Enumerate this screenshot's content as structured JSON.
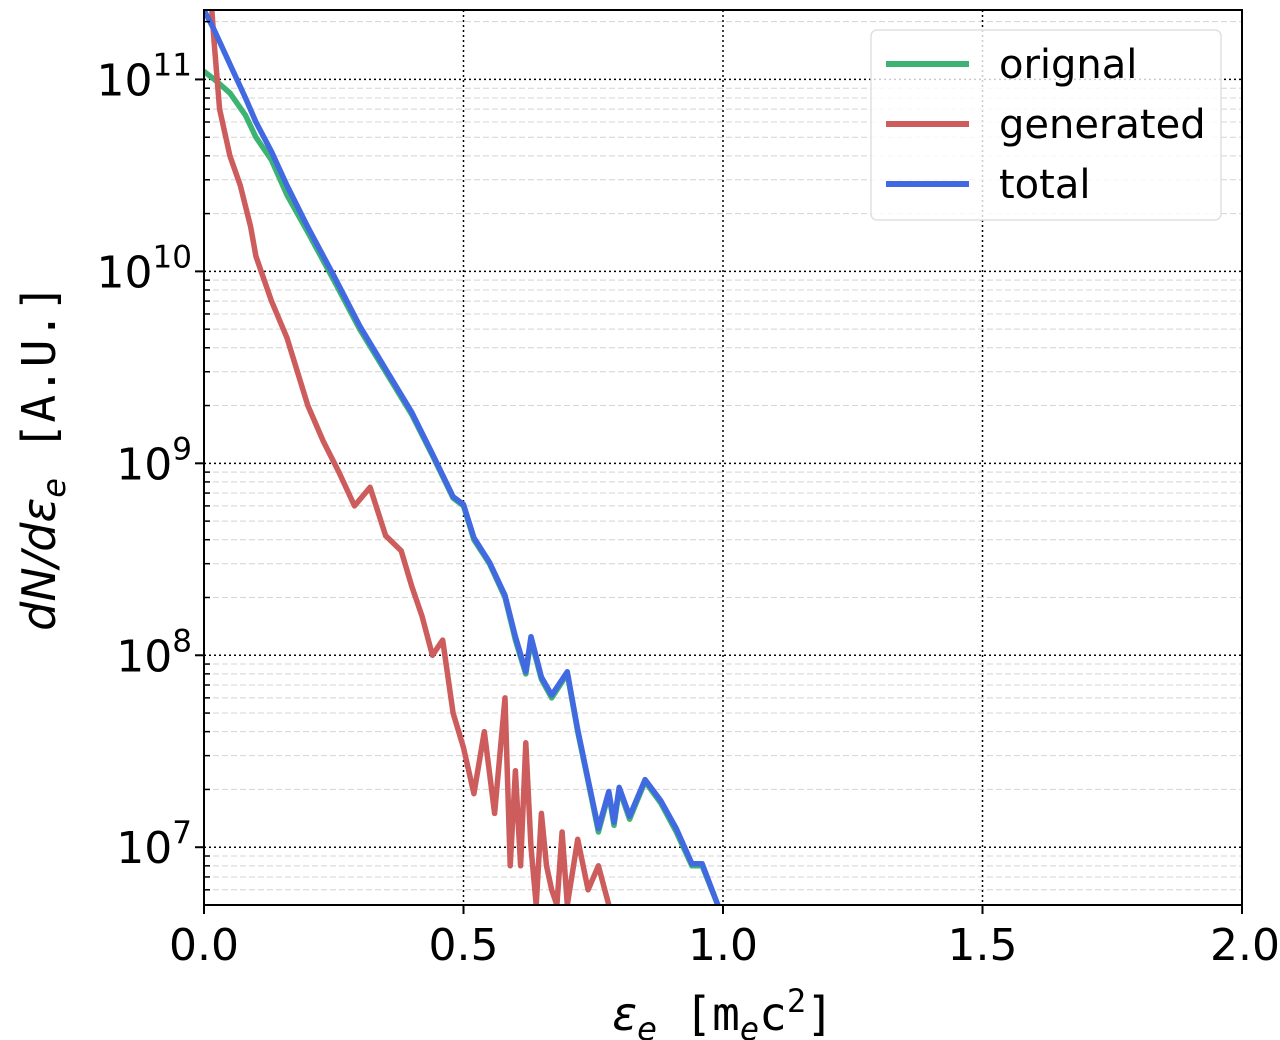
{
  "chart_data": {
    "type": "line",
    "title": "",
    "xlabel": {
      "symbol": "ε",
      "sub": "e",
      "unit_open": " [m",
      "unit_sub": "e",
      "unit_mid": "c",
      "unit_sup": "2",
      "unit_close": "]"
    },
    "ylabel": {
      "text": "dN/dε",
      "sub": "e",
      "unit": " [A.U.]"
    },
    "xlim": [
      0.0,
      2.0
    ],
    "ylim": [
      5000000.0,
      230000000000.0
    ],
    "yscale": "log",
    "grid": true,
    "legend_position": "top-right",
    "x_ticks": [
      "0.0",
      "0.5",
      "1.0",
      "1.5",
      "2.0"
    ],
    "y_ticks": [
      {
        "base": "10",
        "exp": "7"
      },
      {
        "base": "10",
        "exp": "8"
      },
      {
        "base": "10",
        "exp": "9"
      },
      {
        "base": "10",
        "exp": "10"
      },
      {
        "base": "10",
        "exp": "11"
      }
    ],
    "series": [
      {
        "name": "orignal",
        "color": "#3cb371",
        "x": [
          0.0,
          0.02,
          0.05,
          0.08,
          0.1,
          0.13,
          0.16,
          0.2,
          0.25,
          0.3,
          0.35,
          0.4,
          0.44,
          0.48,
          0.5,
          0.52,
          0.55,
          0.58,
          0.6,
          0.62,
          0.63,
          0.65,
          0.67,
          0.7,
          0.72,
          0.74,
          0.76,
          0.78,
          0.79,
          0.8,
          0.82,
          0.85,
          0.88,
          0.91,
          0.94,
          0.96,
          0.99
        ],
        "y": [
          110000000000.0,
          100000000000.0,
          85000000000.0,
          65000000000.0,
          50000000000.0,
          38000000000.0,
          25000000000.0,
          16000000000.0,
          9000000000.0,
          5000000000.0,
          3000000000.0,
          1800000000.0,
          1100000000.0,
          660000000.0,
          600000000.0,
          400000000.0,
          300000000.0,
          200000000.0,
          120000000.0,
          80000000.0,
          120000000.0,
          75000000.0,
          60000000.0,
          80000000.0,
          40000000.0,
          22000000.0,
          12000000.0,
          19000000.0,
          13000000.0,
          20000000.0,
          14000000.0,
          22000000.0,
          17000000.0,
          12000000.0,
          8000000.0,
          8000000.0,
          5000000.0
        ]
      },
      {
        "name": "generated",
        "color": "#cd5c5c",
        "x": [
          0.015,
          0.02,
          0.03,
          0.05,
          0.07,
          0.09,
          0.1,
          0.13,
          0.16,
          0.18,
          0.2,
          0.23,
          0.26,
          0.29,
          0.32,
          0.35,
          0.38,
          0.4,
          0.42,
          0.44,
          0.46,
          0.48,
          0.5,
          0.52,
          0.54,
          0.56,
          0.58,
          0.59,
          0.6,
          0.61,
          0.62,
          0.63,
          0.64,
          0.65,
          0.66,
          0.67,
          0.68,
          0.69,
          0.7,
          0.72,
          0.74,
          0.76,
          0.78
        ],
        "y": [
          230000000000.0,
          150000000000.0,
          70000000000.0,
          40000000000.0,
          28000000000.0,
          17000000000.0,
          12000000000.0,
          7000000000.0,
          4500000000.0,
          3000000000.0,
          2000000000.0,
          1300000000.0,
          900000000.0,
          600000000.0,
          750000000.0,
          420000000.0,
          350000000.0,
          230000000.0,
          160000000.0,
          100000000.0,
          120000000.0,
          50000000.0,
          33000000.0,
          19000000.0,
          40000000.0,
          15000000.0,
          60000000.0,
          8000000.0,
          25000000.0,
          8000000.0,
          35000000.0,
          10000000.0,
          5000000.0,
          15000000.0,
          8000000.0,
          6000000.0,
          5000000.0,
          12000000.0,
          5000000.0,
          11000000.0,
          6000000.0,
          8000000.0,
          5000000.0
        ]
      },
      {
        "name": "total",
        "color": "#4169e1",
        "x": [
          0.0,
          0.02,
          0.05,
          0.08,
          0.1,
          0.13,
          0.16,
          0.2,
          0.25,
          0.3,
          0.35,
          0.4,
          0.44,
          0.48,
          0.5,
          0.52,
          0.55,
          0.58,
          0.6,
          0.62,
          0.63,
          0.65,
          0.67,
          0.7,
          0.72,
          0.74,
          0.76,
          0.78,
          0.79,
          0.8,
          0.82,
          0.85,
          0.88,
          0.91,
          0.94,
          0.96,
          0.99
        ],
        "y": [
          230000000000.0,
          180000000000.0,
          120000000000.0,
          80000000000.0,
          60000000000.0,
          42000000000.0,
          28000000000.0,
          17000000000.0,
          9500000000.0,
          5200000000.0,
          3100000000.0,
          1850000000.0,
          1120000000.0,
          670000000.0,
          610000000.0,
          410000000.0,
          305000000.0,
          205000000.0,
          125000000.0,
          82000000.0,
          125000000.0,
          77000000.0,
          62000000.0,
          82000000.0,
          41000000.0,
          22500000.0,
          12500000.0,
          19500000.0,
          13500000.0,
          20500000.0,
          14500000.0,
          22500000.0,
          17500000.0,
          12500000.0,
          8200000.0,
          8200000.0,
          5000000.0
        ]
      }
    ]
  }
}
